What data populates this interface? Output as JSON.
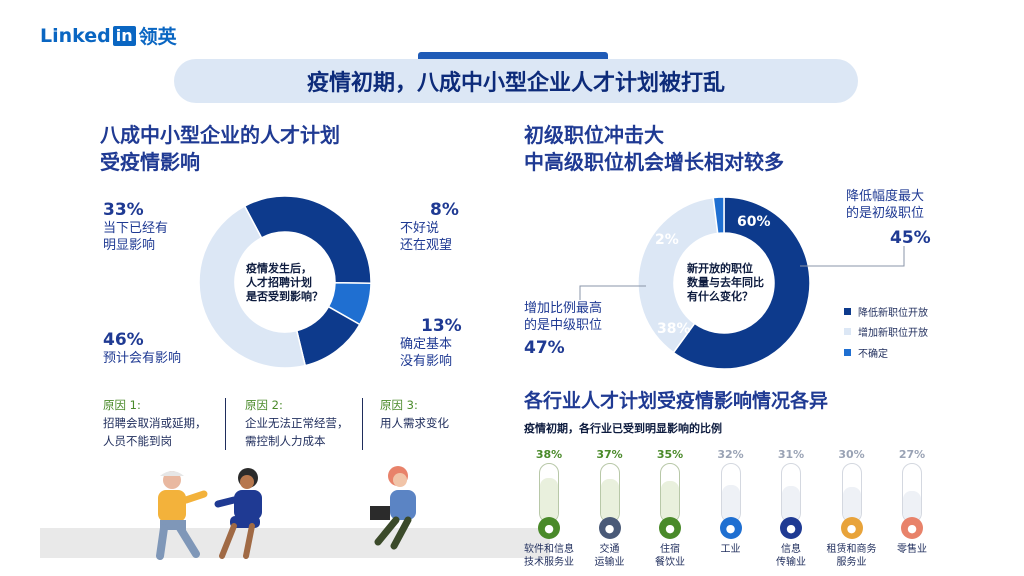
{
  "logo": {
    "text_a": "Linked",
    "text_b": "in",
    "text_cn": "领英"
  },
  "banner": {
    "title": "疫情初期，八成中小型企业人才计划被打乱"
  },
  "left": {
    "title_line1": "八成中小型企业的人才计划",
    "title_line2": "受疫情影响",
    "center_line1": "疫情发生后，",
    "center_line2": "人才招聘计划",
    "center_line3": "是否受到影响？",
    "items": [
      {
        "pct": "33%",
        "l1": "当下已经有",
        "l2": "明显影响"
      },
      {
        "pct": "8%",
        "l1": "不好说",
        "l2": "还在观望"
      },
      {
        "pct": "13%",
        "l1": "确定基本",
        "l2": "没有影响"
      },
      {
        "pct": "46%",
        "l1": "预计会有影响",
        "l2": ""
      }
    ],
    "reasons": [
      {
        "title": "原因 1:",
        "l1": "招聘会取消或延期，",
        "l2": "人员不能到岗"
      },
      {
        "title": "原因 2:",
        "l1": "企业无法正常经营，",
        "l2": "需控制人力成本"
      },
      {
        "title": "原因 3:",
        "l1": "用人需求变化",
        "l2": ""
      }
    ]
  },
  "right": {
    "title_line1": "初级职位冲击大",
    "title_line2": "中高级职位机会增长相对较多",
    "center_line1": "新开放的职位",
    "center_line2": "数量与去年同比",
    "center_line3": "有什么变化？",
    "callout_right_l1": "降低幅度最大",
    "callout_right_l2": "的是初级职位",
    "callout_right_pct": "45%",
    "callout_left_l1": "增加比例最高",
    "callout_left_l2": "的是中级职位",
    "callout_left_pct": "47%",
    "slice_label_60": "60%",
    "slice_label_38": "38%",
    "slice_label_2": "2%",
    "legend": [
      {
        "label": "降低新职位开放",
        "color": "#0d3a8c"
      },
      {
        "label": "增加新职位开放",
        "color": "#dce7f5"
      },
      {
        "label": "不确定",
        "color": "#1f6fd1"
      }
    ],
    "industry_title": "各行业人才计划受疫情影响情况各异",
    "industry_subtitle": "疫情初期，各行业已受到明显影响的比例"
  },
  "chart_data": [
    {
      "type": "pie",
      "title": "",
      "center_text": "疫情发生后，人才招聘计划是否受到影响？",
      "slices": [
        {
          "label": "当下已经有明显影响",
          "value": 33,
          "color": "#0d3a8c"
        },
        {
          "label": "不好说还在观望",
          "value": 8,
          "color": "#1f6fd1"
        },
        {
          "label": "确定基本没有影响",
          "value": 13,
          "color": "#0d3a8c"
        },
        {
          "label": "预计会有影响",
          "value": 46,
          "color": "#dce7f5"
        }
      ]
    },
    {
      "type": "pie",
      "title": "",
      "center_text": "新开放的职位数量与去年同比有什么变化？",
      "slices": [
        {
          "label": "降低新职位开放",
          "value": 60,
          "color": "#0d3a8c"
        },
        {
          "label": "增加新职位开放",
          "value": 38,
          "color": "#dce7f5"
        },
        {
          "label": "不确定",
          "value": 2,
          "color": "#1f6fd1"
        }
      ]
    },
    {
      "type": "bar",
      "title": "疫情初期，各行业已受到明显影响的比例",
      "categories": [
        "软件和信息技术服务业",
        "交通运输业",
        "住宿餐饮业",
        "工业",
        "信息传输业",
        "租赁和商务服务业",
        "零售业"
      ],
      "values": [
        38,
        37,
        35,
        32,
        31,
        30,
        27
      ],
      "value_labels": [
        "38%",
        "37%",
        "35%",
        "32%",
        "31%",
        "30%",
        "27%"
      ]
    }
  ],
  "industries": [
    {
      "pct": "38%",
      "l1": "软件和信息",
      "l2": "技术服务业",
      "color": "#4a8a2a",
      "icon": "monitor-icon"
    },
    {
      "pct": "37%",
      "l1": "交通",
      "l2": "运输业",
      "color": "#4a5a78",
      "icon": "car-icon"
    },
    {
      "pct": "35%",
      "l1": "住宿",
      "l2": "餐饮业",
      "color": "#4a8a2a",
      "icon": "dish-icon"
    },
    {
      "pct": "32%",
      "l1": "工业",
      "l2": "",
      "color": "#1f6fd1",
      "icon": "factory-icon"
    },
    {
      "pct": "31%",
      "l1": "信息",
      "l2": "传输业",
      "color": "#1f3a93",
      "icon": "network-icon"
    },
    {
      "pct": "30%",
      "l1": "租赁和商务",
      "l2": "服务业",
      "color": "#e8a33a",
      "icon": "building-icon"
    },
    {
      "pct": "27%",
      "l1": "零售业",
      "l2": "",
      "color": "#e8826a",
      "icon": "shop-icon"
    }
  ]
}
